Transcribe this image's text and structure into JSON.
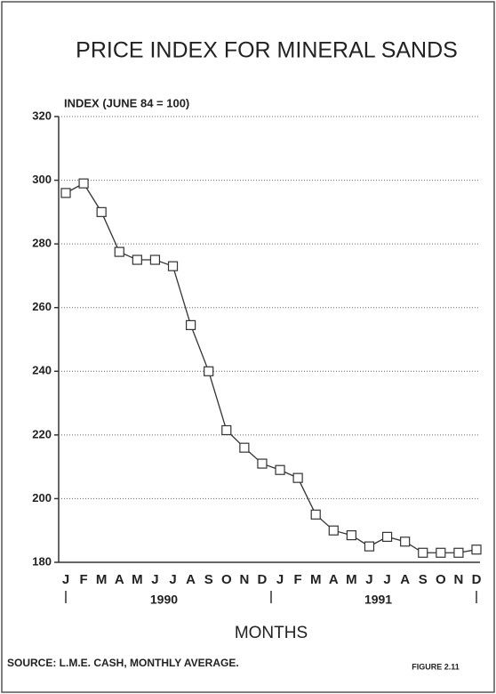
{
  "chart_data": {
    "type": "line",
    "title": "PRICE INDEX FOR MINERAL SANDS",
    "y_label": "INDEX (JUNE 84 = 100)",
    "x_label": "MONTHS",
    "source": "SOURCE: L.M.E. CASH, MONTHLY AVERAGE.",
    "figure": "FIGURE 2.11",
    "categories": [
      "J",
      "F",
      "M",
      "A",
      "M",
      "J",
      "J",
      "A",
      "S",
      "O",
      "N",
      "D",
      "J",
      "F",
      "M",
      "A",
      "M",
      "J",
      "J",
      "A",
      "S",
      "O",
      "N",
      "D"
    ],
    "groups": [
      "1990",
      "1991"
    ],
    "values": [
      296,
      299,
      290,
      277.5,
      275,
      275,
      273,
      254.5,
      240,
      221.5,
      216,
      211,
      209,
      206.5,
      195,
      190,
      188.5,
      185,
      188,
      186.5,
      183,
      183,
      183,
      184
    ],
    "color": "#333333",
    "marker": "square",
    "ylim": [
      180,
      320
    ],
    "yticks": [
      180,
      200,
      220,
      240,
      260,
      280,
      300,
      320
    ],
    "grid": true
  }
}
